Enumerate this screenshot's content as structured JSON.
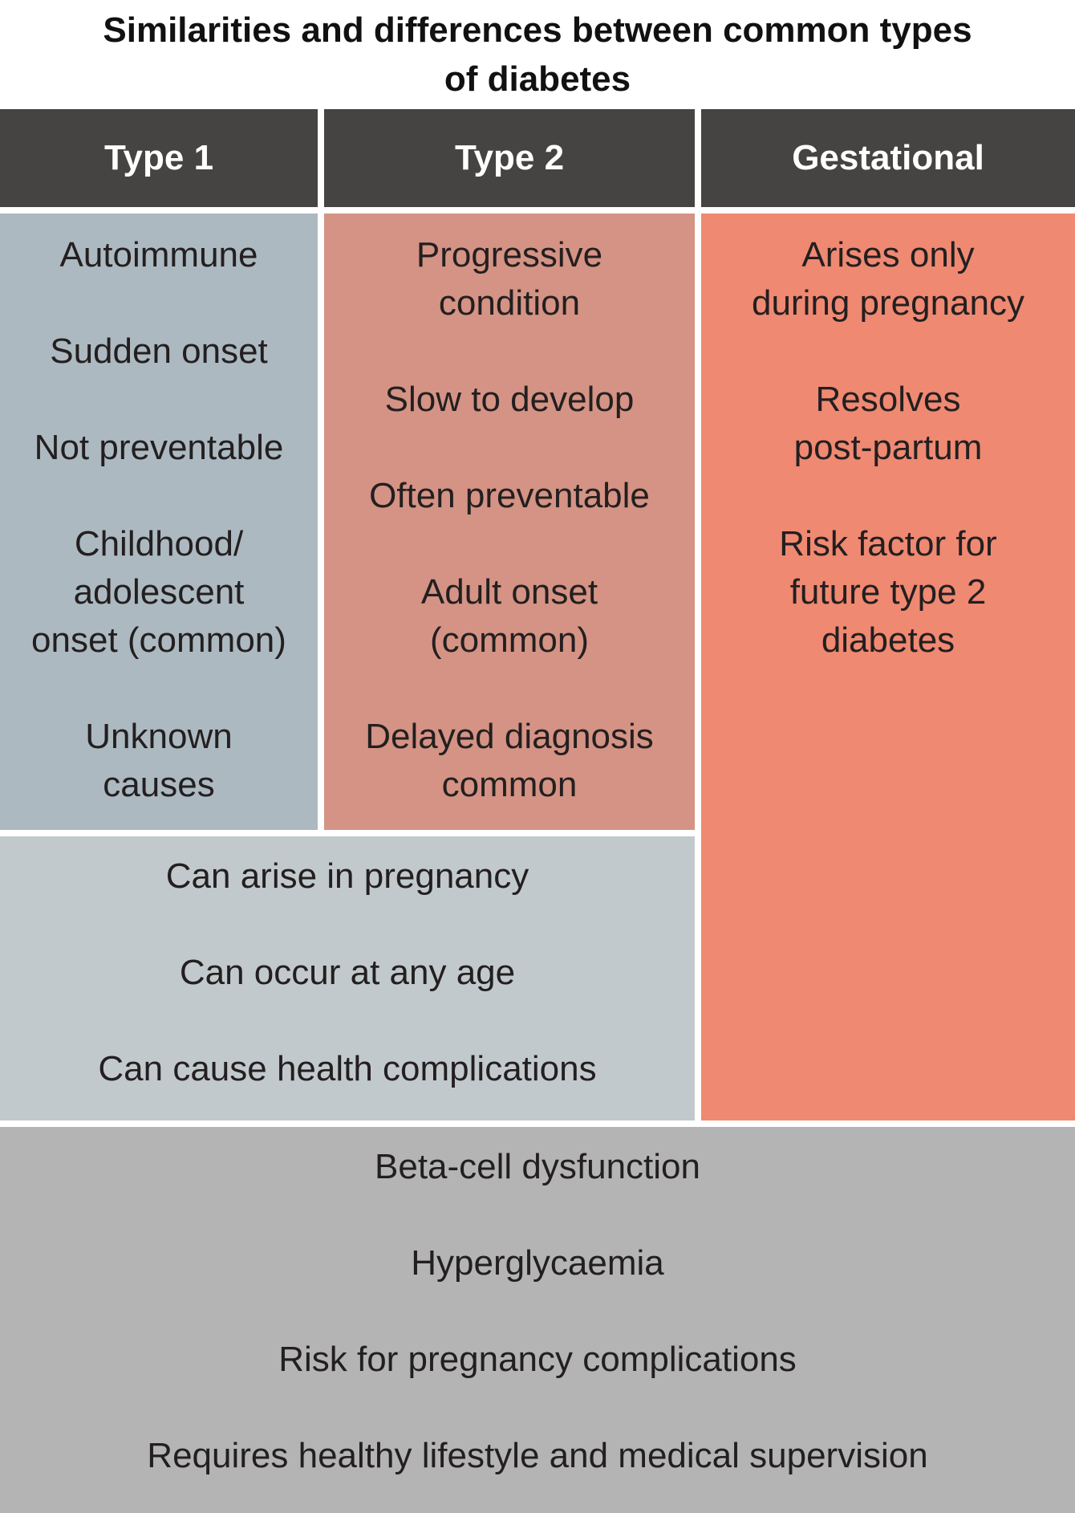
{
  "title": "Similarities and differences between common types\nof diabetes",
  "headers": {
    "type1": "Type 1",
    "type2": "Type 2",
    "gestational": "Gestational"
  },
  "type1": {
    "items": [
      "Autoimmune",
      "Sudden onset",
      "Not preventable",
      "Childhood/\nadolescent\nonset (common)",
      "Unknown\ncauses"
    ]
  },
  "type2": {
    "items": [
      "Progressive\ncondition",
      "Slow to develop",
      "Often preventable",
      "Adult onset\n(common)",
      "Delayed diagnosis\ncommon"
    ]
  },
  "gestational": {
    "items": [
      "Arises only\nduring pregnancy",
      "Resolves\npost-partum",
      "Risk factor for\nfuture type 2\ndiabetes"
    ]
  },
  "shared_type1_type2": {
    "items": [
      "Can arise in pregnancy",
      "Can occur at any age",
      "Can cause health complications"
    ]
  },
  "shared_all": {
    "items": [
      "Beta-cell dysfunction",
      "Hyperglycaemia",
      "Risk for pregnancy complications",
      "Requires healthy lifestyle and medical supervision"
    ]
  },
  "colors": {
    "header": "#464442",
    "type1": "#adb9c0",
    "type2": "#d49384",
    "gestational": "#ef8972",
    "shared_type1_type2": "#c2c9cc",
    "shared_all": "#b4b4b4"
  }
}
